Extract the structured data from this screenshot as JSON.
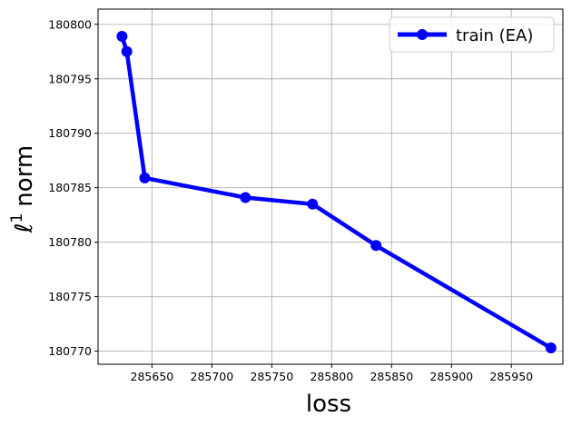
{
  "chart_data": {
    "type": "line",
    "xlabel": "loss",
    "ylabel_symbol": "ℓ",
    "ylabel_sup": "1",
    "ylabel_word": "norm",
    "xlim": [
      285605,
      285993
    ],
    "ylim": [
      180768.8,
      180801.4
    ],
    "xticks": [
      285650,
      285700,
      285750,
      285800,
      285850,
      285900,
      285950
    ],
    "yticks": [
      180770,
      180775,
      180780,
      180785,
      180790,
      180795,
      180800
    ],
    "grid": true,
    "legend_position": "top-right",
    "series": [
      {
        "name": "train (EA)",
        "color": "#0000ff",
        "marker": "circle",
        "points": [
          {
            "x": 285625,
            "y": 180798.9
          },
          {
            "x": 285629,
            "y": 180797.5
          },
          {
            "x": 285644,
            "y": 180785.9
          },
          {
            "x": 285728,
            "y": 180784.1
          },
          {
            "x": 285784,
            "y": 180783.5
          },
          {
            "x": 285837,
            "y": 180779.7
          },
          {
            "x": 285983,
            "y": 180770.3
          }
        ]
      }
    ]
  }
}
